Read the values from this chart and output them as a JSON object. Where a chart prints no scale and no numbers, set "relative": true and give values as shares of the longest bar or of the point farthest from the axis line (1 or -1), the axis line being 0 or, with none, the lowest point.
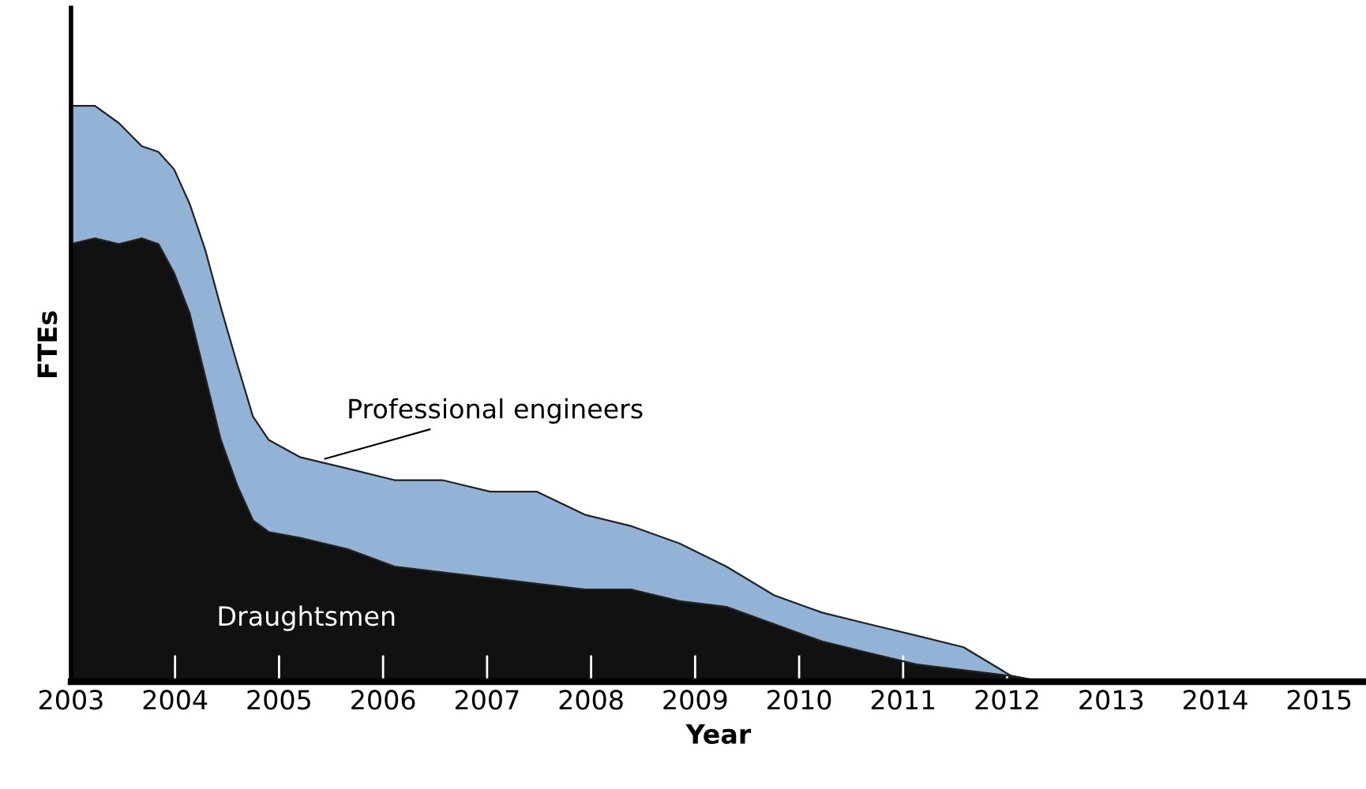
{
  "chart_data": {
    "type": "area",
    "stacked": true,
    "relative": true,
    "xlabel": "Year",
    "ylabel": "FTEs",
    "x": [
      2003.0,
      2003.23,
      2003.46,
      2003.68,
      2003.84,
      2003.99,
      2004.14,
      2004.29,
      2004.44,
      2004.6,
      2004.75,
      2004.9,
      2005.2,
      2005.66,
      2006.11,
      2006.57,
      2007.03,
      2007.48,
      2007.94,
      2008.39,
      2008.85,
      2009.3,
      2009.76,
      2010.22,
      2010.67,
      2011.13,
      2011.58,
      2012.04,
      2012.34,
      2015.45
    ],
    "series": [
      {
        "name": "Draughtsmen",
        "color": "#111111",
        "values": [
          0.76,
          0.77,
          0.76,
          0.77,
          0.76,
          0.71,
          0.64,
          0.53,
          0.42,
          0.34,
          0.28,
          0.26,
          0.25,
          0.23,
          0.2,
          0.19,
          0.18,
          0.17,
          0.16,
          0.16,
          0.14,
          0.13,
          0.1,
          0.07,
          0.05,
          0.03,
          0.02,
          0.01,
          0,
          0
        ]
      },
      {
        "name": "Professional engineers",
        "color": "#93b3d6",
        "values": [
          0.24,
          0.23,
          0.21,
          0.16,
          0.16,
          0.18,
          0.19,
          0.22,
          0.23,
          0.21,
          0.18,
          0.16,
          0.14,
          0.14,
          0.15,
          0.16,
          0.15,
          0.16,
          0.13,
          0.11,
          0.1,
          0.07,
          0.05,
          0.05,
          0.05,
          0.05,
          0.04,
          0,
          0,
          0
        ]
      }
    ],
    "xlim": [
      2003,
      2015.45
    ],
    "xticks": [
      2003,
      2004,
      2005,
      2006,
      2007,
      2008,
      2009,
      2010,
      2011,
      2012,
      2013,
      2014,
      2015
    ],
    "grid": false,
    "legend": false
  }
}
